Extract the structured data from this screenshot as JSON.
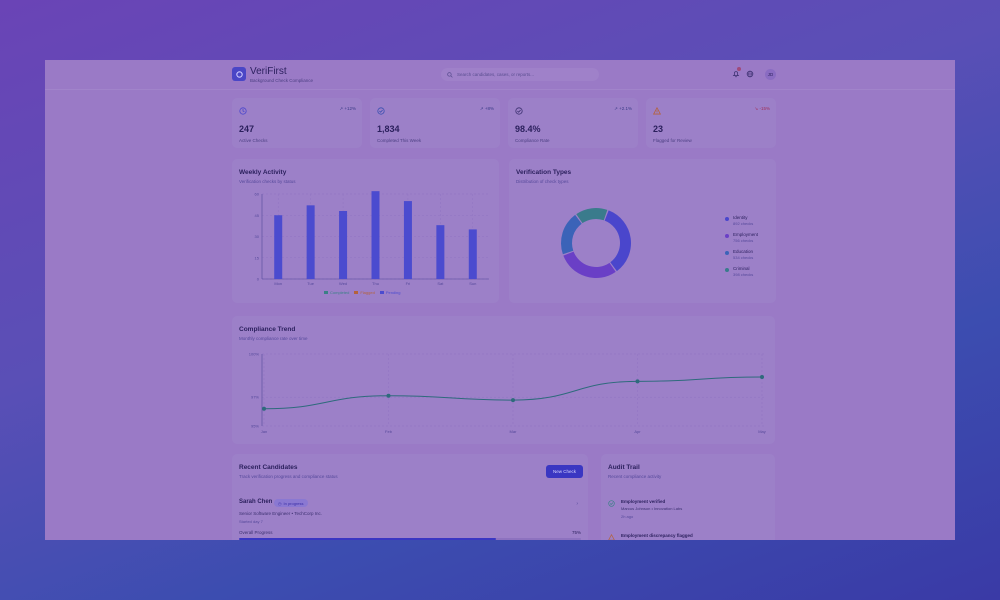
{
  "header": {
    "brand": "VeriFirst",
    "tagline": "Background Check Compliance",
    "search_placeholder": "Search candidates, cases, or reports...",
    "avatar_initials": "JD"
  },
  "stats": [
    {
      "value": "247",
      "label": "Active Checks",
      "trend": "+12%",
      "icon": "clock-icon",
      "direction": "up"
    },
    {
      "value": "1,834",
      "label": "Completed This Week",
      "trend": "+8%",
      "icon": "check-circle-icon",
      "direction": "up"
    },
    {
      "value": "98.4%",
      "label": "Compliance Rate",
      "trend": "+2.1%",
      "icon": "check-circle-icon",
      "direction": "up"
    },
    {
      "value": "23",
      "label": "Flagged for Review",
      "trend": "-15%",
      "icon": "alert-triangle-icon",
      "direction": "down"
    }
  ],
  "weekly": {
    "title": "Weekly Activity",
    "subtitle": "Verification checks by status",
    "legend": [
      "Completed",
      "Flagged",
      "Pending"
    ],
    "legend_colors": [
      "#3b8086",
      "#b4623c",
      "#4b4bcf"
    ]
  },
  "types": {
    "title": "Verification Types",
    "subtitle": "Distribution of check types",
    "items": [
      {
        "name": "Identity",
        "count": "892 checks",
        "color": "#4a46cc"
      },
      {
        "name": "Employment",
        "count": "756 checks",
        "color": "#6a3fc6"
      },
      {
        "name": "Education",
        "count": "534 checks",
        "color": "#3b63b8"
      },
      {
        "name": "Criminal",
        "count": "398 checks",
        "color": "#3a7b8c"
      }
    ]
  },
  "trend": {
    "title": "Compliance Trend",
    "subtitle": "Monthly compliance rate over time"
  },
  "candidates": {
    "title": "Recent Candidates",
    "subtitle": "Track verification progress and compliance status",
    "new_button": "New Check",
    "first": {
      "name": "Sarah Chen",
      "status": "In progress",
      "role": "Senior Software Engineer • TechCorp Inc.",
      "start": "Started day 7",
      "progress_label": "Overall Progress",
      "progress_value": "75%",
      "progress": 0.75
    }
  },
  "audit": {
    "title": "Audit Trail",
    "subtitle": "Recent compliance activity",
    "items": [
      {
        "title": "Employment verified",
        "sub": "Marcus Johnson • Innovation Labs",
        "time": "2h ago",
        "icon": "check-circle-icon",
        "color": "#3b8086"
      },
      {
        "title": "Employment discrepancy flagged",
        "sub": "",
        "time": "",
        "icon": "alert-triangle-icon",
        "color": "#b4623c"
      }
    ]
  },
  "chart_data": [
    {
      "type": "bar",
      "categories": [
        "Mon",
        "Tue",
        "Wed",
        "Thu",
        "Fri",
        "Sat",
        "Sun"
      ],
      "series": [
        {
          "name": "Pending",
          "values": [
            45,
            52,
            48,
            62,
            55,
            38,
            35
          ]
        }
      ],
      "yticks": [
        0,
        15,
        30,
        45,
        60
      ],
      "ylim": [
        0,
        60
      ],
      "xlabel": "",
      "ylabel": "",
      "title": "Weekly Activity"
    },
    {
      "type": "pie",
      "labels": [
        "Identity",
        "Employment",
        "Education",
        "Criminal"
      ],
      "values": [
        892,
        756,
        534,
        398
      ],
      "title": "Verification Types"
    },
    {
      "type": "line",
      "categories": [
        "Jan",
        "Feb",
        "Mar",
        "Apr",
        "May"
      ],
      "series": [
        {
          "name": "",
          "values": [
            96.2,
            97.1,
            96.8,
            98.1,
            98.4
          ]
        }
      ],
      "yticks": [
        "95%",
        "97%",
        "100%"
      ],
      "ylim": [
        95,
        100
      ],
      "title": "Compliance Trend"
    }
  ]
}
